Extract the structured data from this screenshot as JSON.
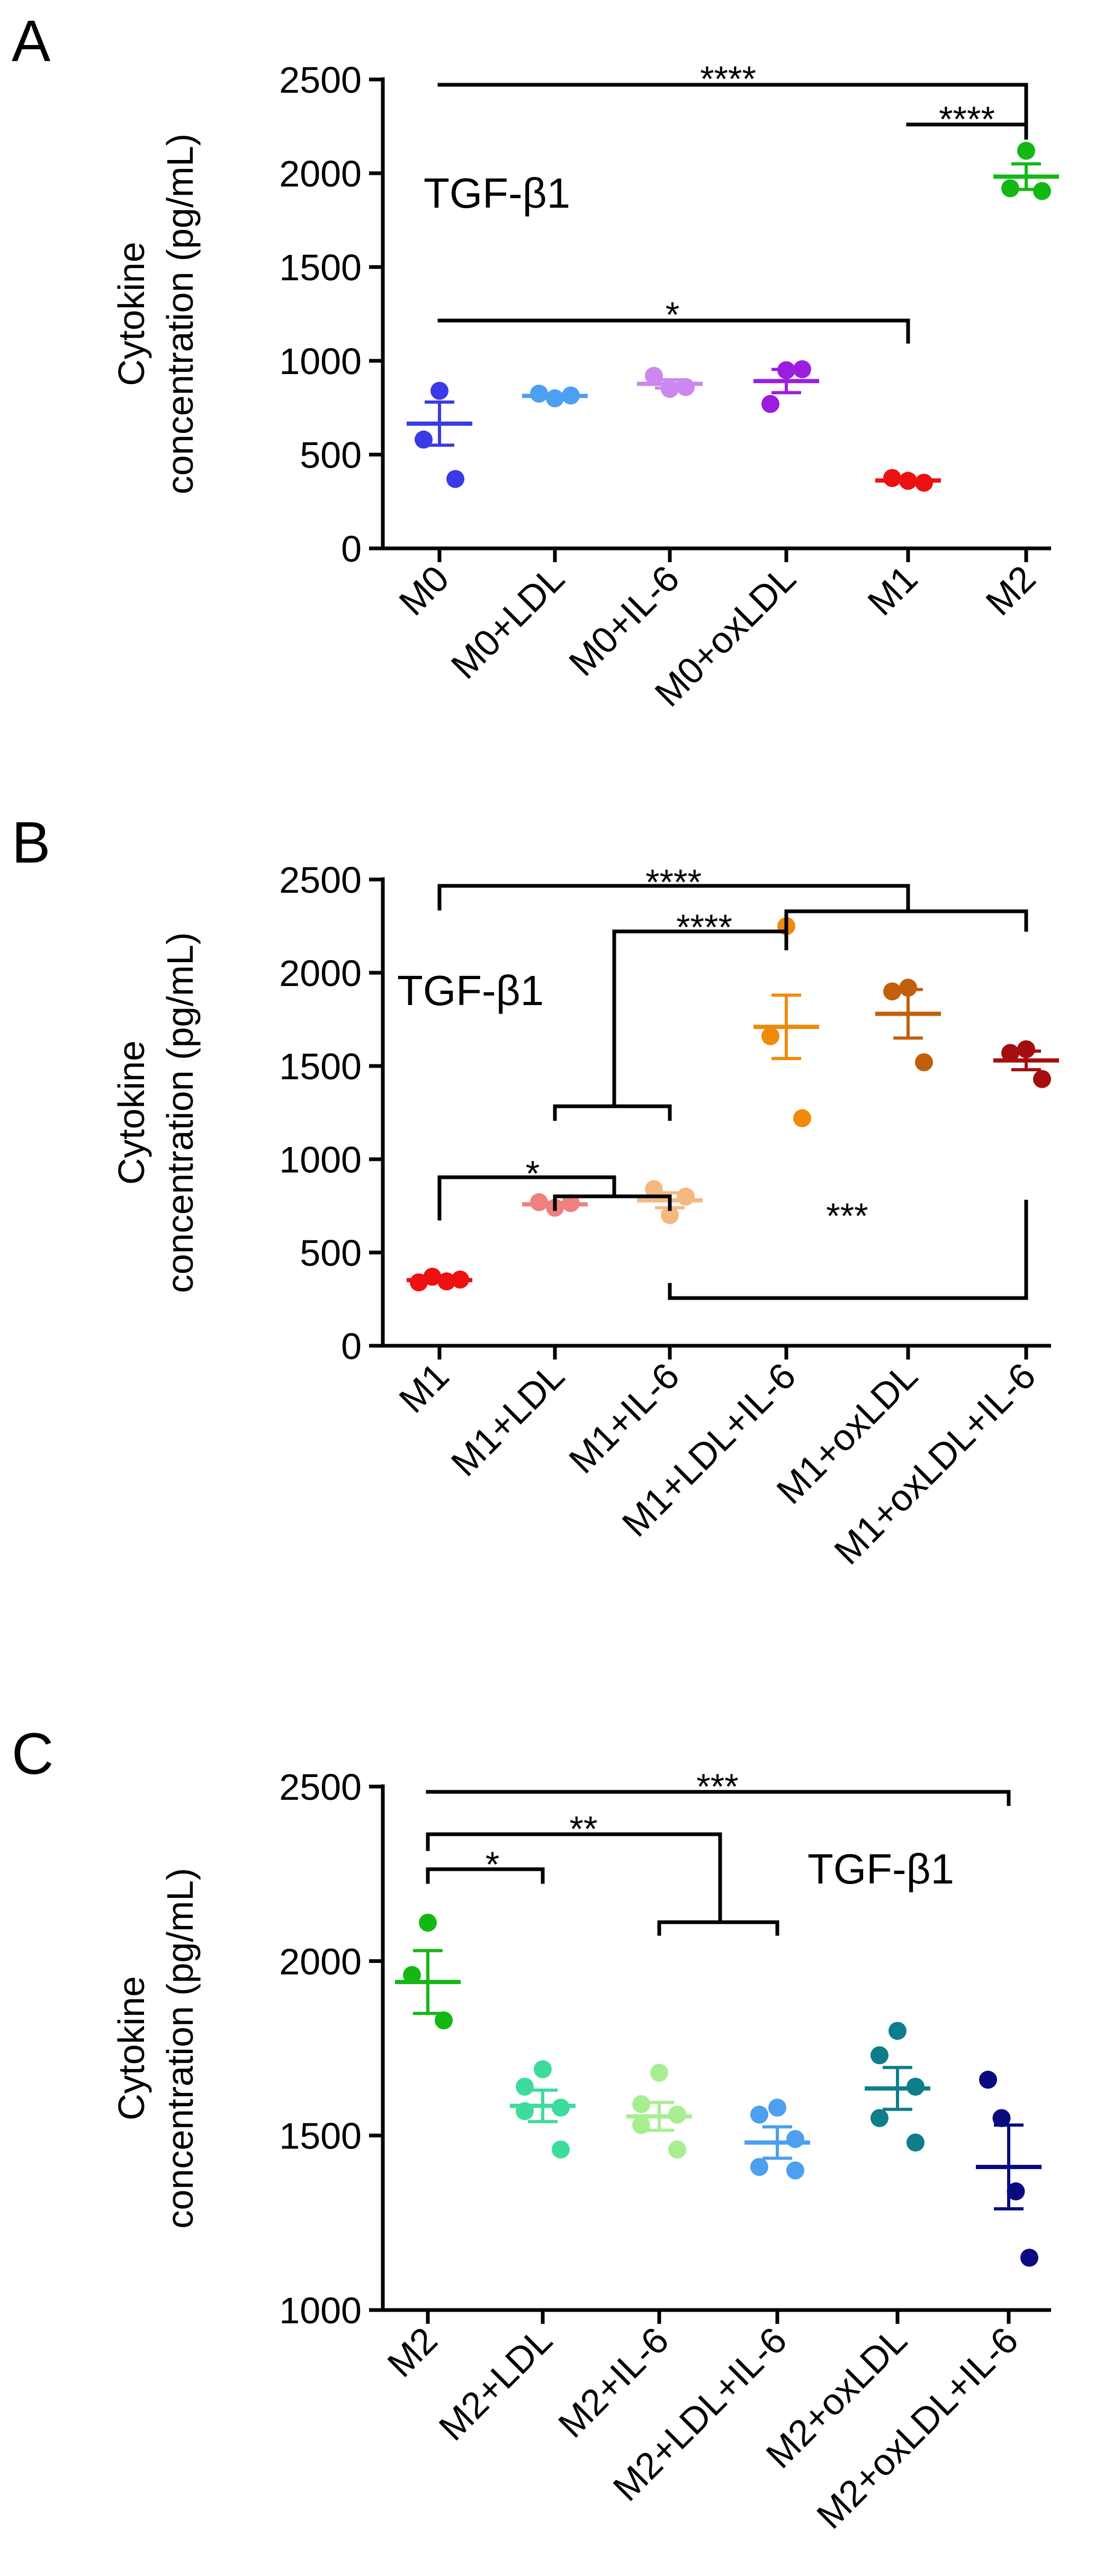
{
  "chart_data": [
    {
      "type": "scatter",
      "panel_label": "A",
      "annotation": "TGF-β1",
      "ylabel_line1": "Cytokine",
      "ylabel_line2": "concentration (pg/mL)",
      "ylim": [
        0,
        2500
      ],
      "yticks": [
        0,
        500,
        1000,
        1500,
        2000,
        2500
      ],
      "categories": [
        "M0",
        "M0+LDL",
        "M0+IL-6",
        "M0+oxLDL",
        "M1",
        "M2"
      ],
      "colors": [
        "#3a3ae6",
        "#4d9ff0",
        "#cc88ee",
        "#9b1ee0",
        "#ee1111",
        "#14b814"
      ],
      "groups": [
        {
          "points": [
            840,
            580,
            370
          ],
          "mean": 665,
          "sem": 115
        },
        {
          "points": [
            800,
            825,
            815
          ],
          "mean": 813,
          "sem": 8
        },
        {
          "points": [
            850,
            920,
            860
          ],
          "mean": 877,
          "sem": 22
        },
        {
          "points": [
            950,
            770,
            955
          ],
          "mean": 892,
          "sem": 62
        },
        {
          "points": [
            360,
            375,
            350
          ],
          "mean": 362,
          "sem": 7
        },
        {
          "points": [
            2120,
            1920,
            1905
          ],
          "mean": 1982,
          "sem": 68
        }
      ],
      "significance": [
        {
          "label": "****",
          "from": "M0",
          "to": "M2"
        },
        {
          "label": "****",
          "from": "M1",
          "to": "M2"
        },
        {
          "label": "*",
          "from": "M0",
          "to": "M1"
        }
      ]
    },
    {
      "type": "scatter",
      "panel_label": "B",
      "annotation": "TGF-β1",
      "ylabel_line1": "Cytokine",
      "ylabel_line2": "concentration (pg/mL)",
      "ylim": [
        0,
        2500
      ],
      "yticks": [
        0,
        500,
        1000,
        1500,
        2000,
        2500
      ],
      "categories": [
        "M1",
        "M1+LDL",
        "M1+IL-6",
        "M1+LDL+IL-6",
        "M1+oxLDL",
        "M1+oxLDL+IL-6"
      ],
      "colors": [
        "#ee1111",
        "#f08080",
        "#f5b880",
        "#f08a0a",
        "#c0600a",
        "#a50e0e"
      ],
      "groups": [
        {
          "points": [
            340,
            370,
            345,
            355
          ],
          "mean": 352,
          "sem": 8
        },
        {
          "points": [
            740,
            770,
            765
          ],
          "mean": 758,
          "sem": 10
        },
        {
          "points": [
            700,
            840,
            800
          ],
          "mean": 780,
          "sem": 40
        },
        {
          "points": [
            2250,
            1660,
            1220
          ],
          "mean": 1710,
          "sem": 170
        },
        {
          "points": [
            1920,
            1900,
            1520
          ],
          "mean": 1780,
          "sem": 130
        },
        {
          "points": [
            1590,
            1570,
            1430
          ],
          "mean": 1530,
          "sem": 50
        }
      ],
      "significance": [
        {
          "label": "****",
          "from": "M1",
          "to": "M1+oxLDL"
        },
        {
          "label": "****",
          "from": "M1+LDL",
          "to": "M1+LDL+IL-6"
        },
        {
          "label": "*",
          "from": "M1",
          "to": "M1+LDL"
        },
        {
          "label": "***",
          "from": "M1+IL-6",
          "to": "M1+oxLDL+IL-6"
        }
      ]
    },
    {
      "type": "scatter",
      "panel_label": "C",
      "annotation": "TGF-β1",
      "ylabel_line1": "Cytokine",
      "ylabel_line2": "concentration (pg/mL)",
      "ylim": [
        1000,
        2500
      ],
      "yticks": [
        1000,
        1500,
        2000,
        2500
      ],
      "categories": [
        "M2",
        "M2+LDL",
        "M2+IL-6",
        "M2+LDL+IL-6",
        "M2+oxLDL",
        "M2+oxLDL+IL-6"
      ],
      "colors": [
        "#14b814",
        "#3edc9c",
        "#a8ee90",
        "#4d9ff0",
        "#0e7e8a",
        "#0a0a80"
      ],
      "groups": [
        {
          "points": [
            2110,
            1960,
            1830
          ],
          "mean": 1940,
          "sem": 90
        },
        {
          "points": [
            1690,
            1640,
            1580,
            1570,
            1460
          ],
          "mean": 1585,
          "sem": 45
        },
        {
          "points": [
            1680,
            1590,
            1560,
            1530,
            1460
          ],
          "mean": 1555,
          "sem": 40
        },
        {
          "points": [
            1580,
            1560,
            1490,
            1410,
            1400
          ],
          "mean": 1480,
          "sem": 45
        },
        {
          "points": [
            1800,
            1730,
            1640,
            1550,
            1480
          ],
          "mean": 1635,
          "sem": 60
        },
        {
          "points": [
            1660,
            1550,
            1340,
            1150
          ],
          "mean": 1410,
          "sem": 120
        }
      ],
      "significance": [
        {
          "label": "***",
          "from": "M2",
          "to": "M2+oxLDL+IL-6"
        },
        {
          "label": "**",
          "from": "M2",
          "to": "M2+IL-6 / M2+LDL+IL-6"
        },
        {
          "label": "*",
          "from": "M2",
          "to": "M2+LDL"
        }
      ]
    }
  ]
}
